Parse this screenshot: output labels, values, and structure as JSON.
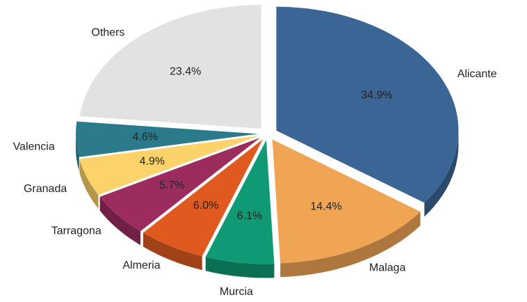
{
  "chart_data": {
    "type": "pie",
    "categories": [
      "Alicante",
      "Malaga",
      "Murcia",
      "Almeria",
      "Tarragona",
      "Granada",
      "Valencia",
      "Others"
    ],
    "values": [
      34.9,
      14.4,
      6.1,
      6.0,
      5.7,
      4.9,
      4.6,
      23.4
    ],
    "value_labels": [
      "34.9%",
      "14.4%",
      "6.1%",
      "6.0%",
      "5.7%",
      "4.9%",
      "4.6%",
      "23.4%"
    ],
    "colors": [
      "#3a6595",
      "#f0a555",
      "#0f9a75",
      "#e05a20",
      "#9c2c5e",
      "#fcd26a",
      "#2a7a8c",
      "#e2e2e2"
    ]
  }
}
